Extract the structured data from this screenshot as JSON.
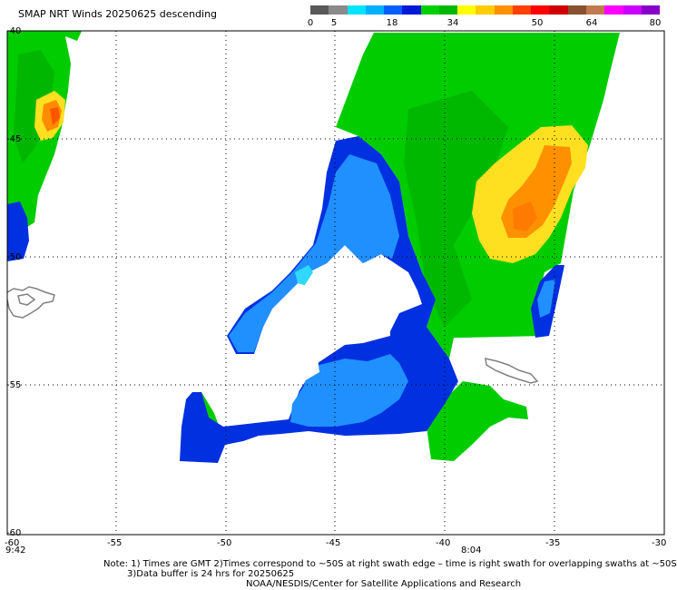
{
  "title": "SMAP NRT Winds  20250625  descending",
  "colorbar": {
    "ticks": [
      "0",
      "5",
      "18",
      "34",
      "50",
      "64",
      "80"
    ],
    "colors": [
      "#585858",
      "#8a8a8a",
      "#00e4ff",
      "#00b0ff",
      "#0060ff",
      "#0018d8",
      "#00d000",
      "#00b800",
      "#ffff00",
      "#ffcc00",
      "#ff9000",
      "#ff4000",
      "#ff0000",
      "#d00000",
      "#8a5030",
      "#c07a50",
      "#ff00ff",
      "#cc00ff",
      "#8800c8"
    ]
  },
  "y_axis": [
    "-40",
    "-45",
    "-50",
    "-55",
    "-60"
  ],
  "x_axis": [
    "-55",
    "-50",
    "-45",
    "-40",
    "-35",
    "-30"
  ],
  "x_first": "-60",
  "times": {
    "left": "9:42",
    "middle": "8:04"
  },
  "notes": {
    "line1": "Note: 1) Times are GMT 2)Times correspond to ~50S at right swath edge – time is right swath for overlapping swaths at ~50S",
    "line2": "3)Data buffer is 24 hrs for 20250625",
    "line3": "NOAA/NESDIS/Center for Satellite Applications and Research"
  },
  "colors": {
    "green": "#00cc00",
    "dark_green": "#00a000",
    "blue": "#0030e0",
    "light_blue": "#2090ff",
    "cyan": "#30d8ff",
    "yellow": "#ffe020",
    "orange": "#ff8c00",
    "red": "#ff3000",
    "coast": "#808080"
  }
}
